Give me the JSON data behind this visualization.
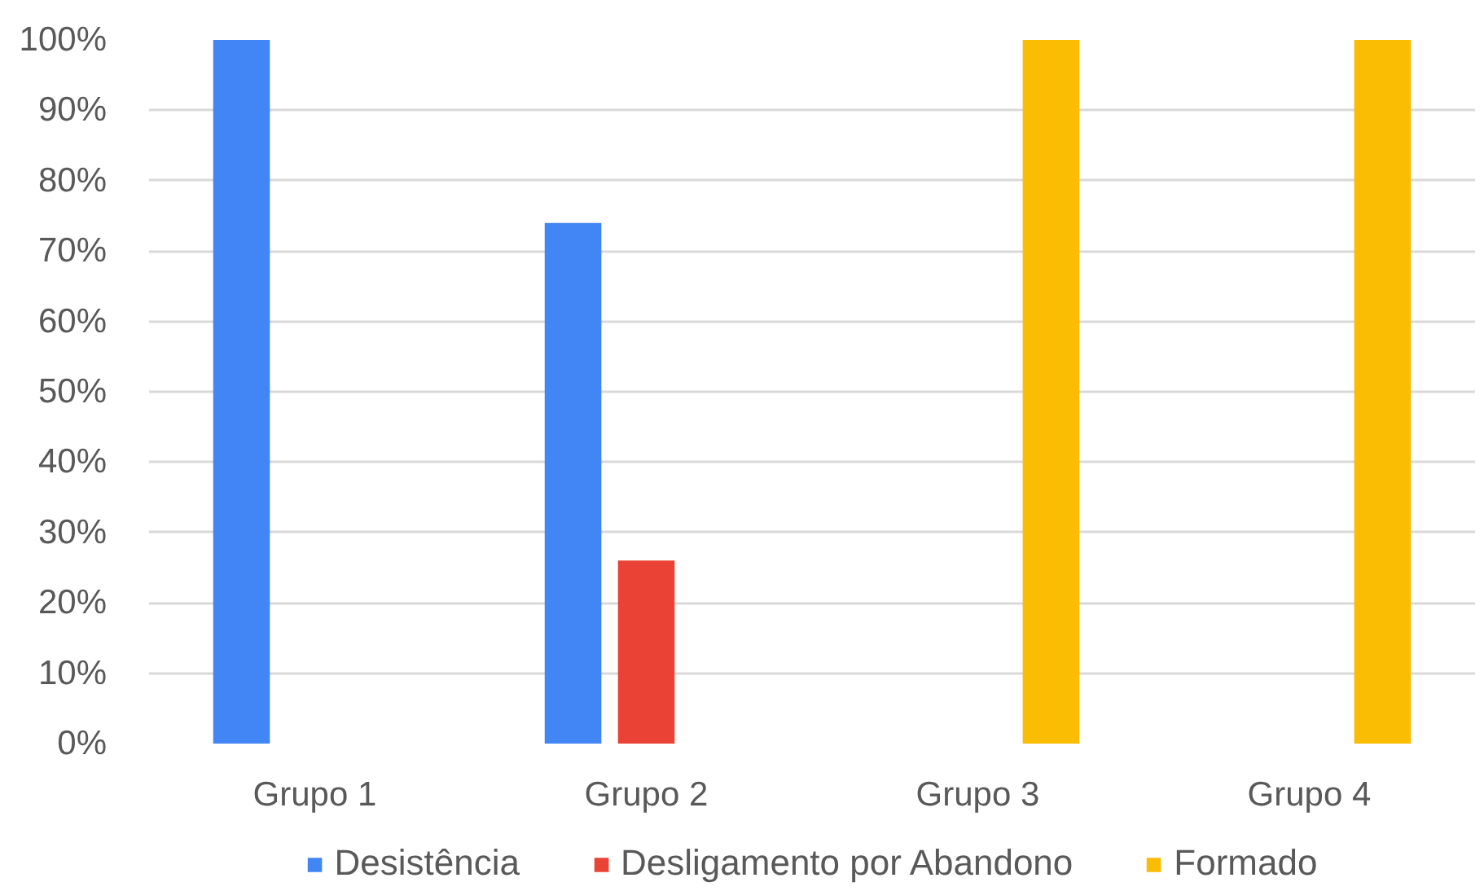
{
  "chart_data": {
    "type": "bar",
    "categories": [
      "Grupo 1",
      "Grupo 2",
      "Grupo 3",
      "Grupo 4"
    ],
    "series": [
      {
        "name": "Desistência",
        "color": "#4285f4",
        "values": [
          100,
          74,
          null,
          null
        ]
      },
      {
        "name": "Desligamento por Abandono",
        "color": "#ea4335",
        "values": [
          null,
          26,
          null,
          null
        ]
      },
      {
        "name": "Formado",
        "color": "#fbbc04",
        "values": [
          null,
          null,
          100,
          100
        ]
      }
    ],
    "ylim": [
      0,
      100
    ],
    "yticks": [
      {
        "value": 0,
        "label": "0%"
      },
      {
        "value": 10,
        "label": "10%"
      },
      {
        "value": 20,
        "label": "20%"
      },
      {
        "value": 30,
        "label": "30%"
      },
      {
        "value": 40,
        "label": "40%"
      },
      {
        "value": 50,
        "label": "50%"
      },
      {
        "value": 60,
        "label": "60%"
      },
      {
        "value": 70,
        "label": "70%"
      },
      {
        "value": 80,
        "label": "80%"
      },
      {
        "value": 90,
        "label": "90%"
      },
      {
        "value": 100,
        "label": "100%"
      }
    ],
    "grid": "y",
    "legend": "bottom"
  }
}
